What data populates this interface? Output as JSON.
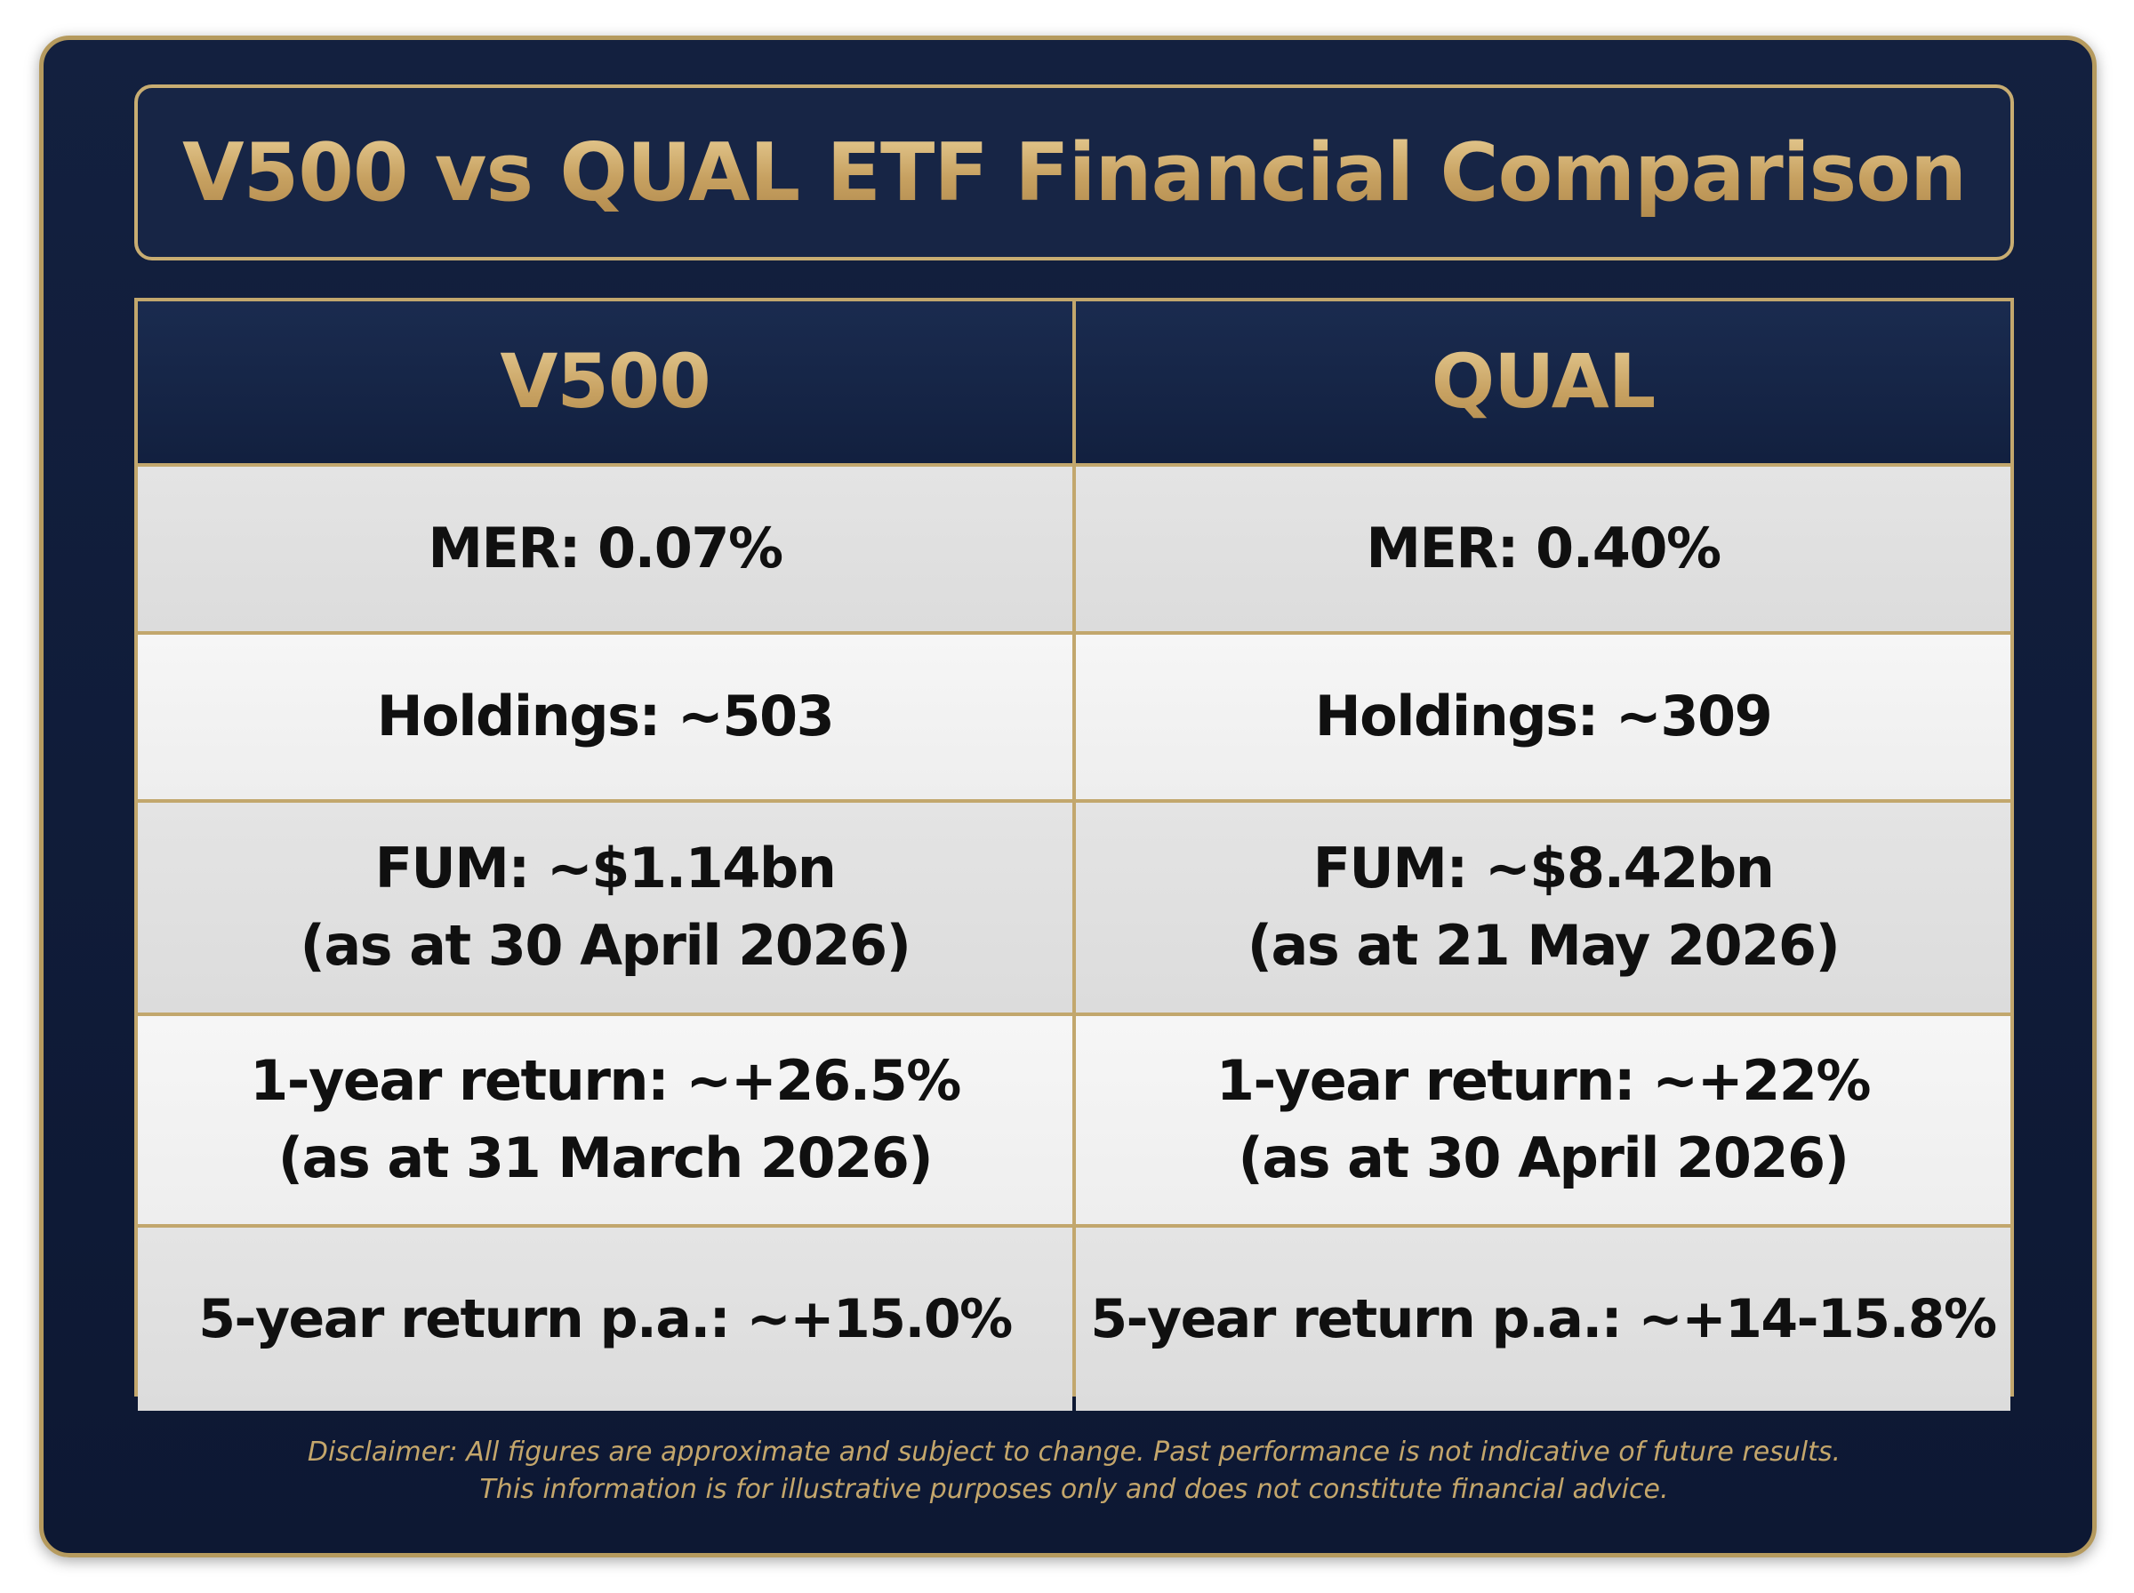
{
  "title": "V500 vs QUAL ETF Financial Comparison",
  "table": {
    "headers": [
      "V500",
      "QUAL"
    ],
    "rows": [
      {
        "v500": [
          "MER: 0.07%"
        ],
        "qual": [
          "MER: 0.40%"
        ]
      },
      {
        "v500": [
          "Holdings: ~503"
        ],
        "qual": [
          "Holdings: ~309"
        ]
      },
      {
        "v500": [
          "FUM: ~$1.14bn",
          "(as at 30 April 2026)"
        ],
        "qual": [
          "FUM: ~$8.42bn",
          "(as at 21 May 2026)"
        ]
      },
      {
        "v500": [
          "1-year return: ~+26.5%",
          "(as at 31 March 2026)"
        ],
        "qual": [
          "1-year return: ~+22%",
          "(as at 30 April 2026)"
        ]
      },
      {
        "v500": [
          "5-year return p.a.: ~+15.0%"
        ],
        "qual": [
          "5-year return p.a.: ~+14-15.8%"
        ]
      }
    ]
  },
  "disclaimer": [
    "Disclaimer: All figures are approximate and subject to change. Past performance is not indicative of future results.",
    "This information is for illustrative purposes only and does not constitute financial advice."
  ]
}
